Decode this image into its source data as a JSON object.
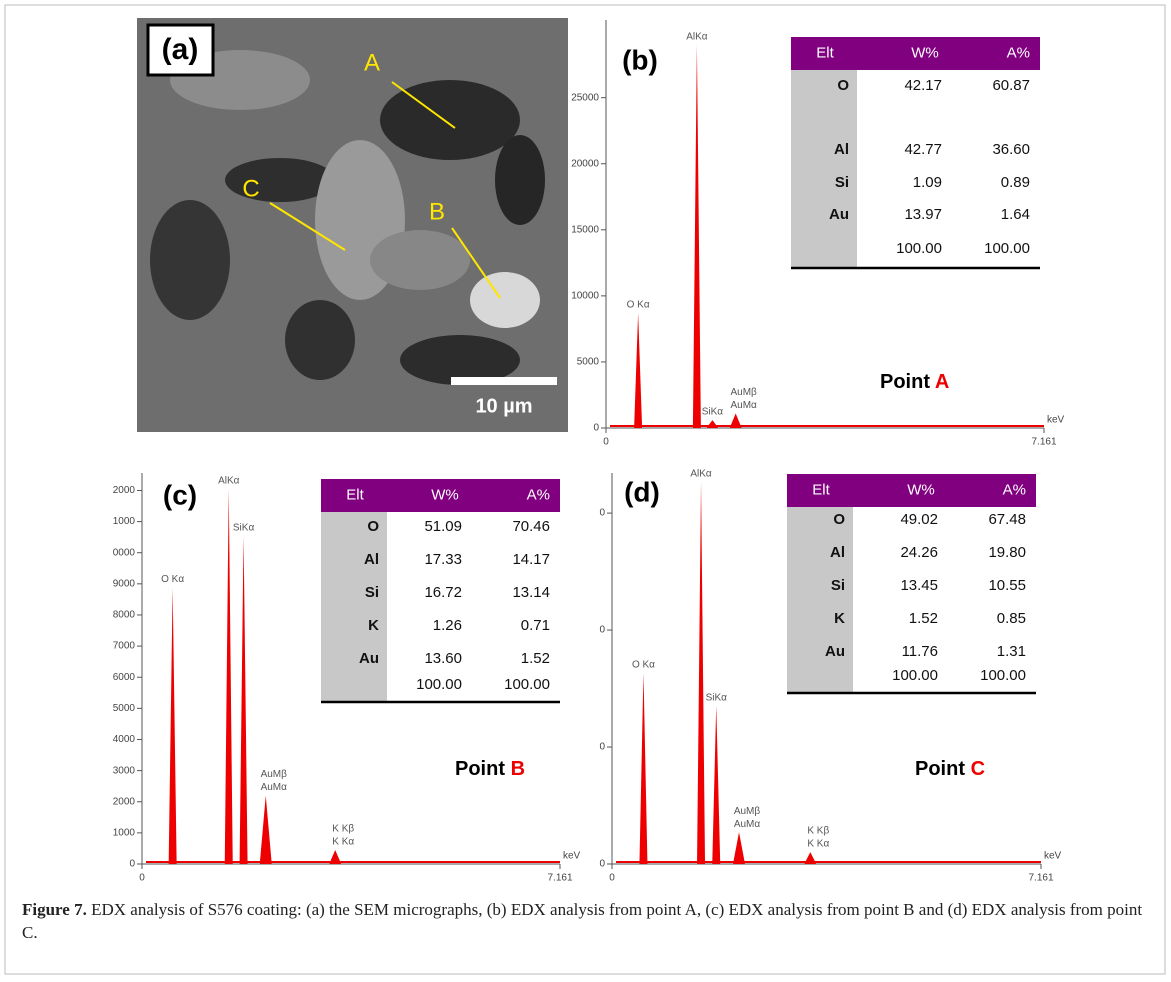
{
  "sem": {
    "label": "(a)",
    "points": [
      "A",
      "B",
      "C"
    ],
    "scale_bar": "10 µm"
  },
  "spectra": [
    {
      "label": "(b)",
      "point": {
        "label": "Point",
        "letter": "A"
      },
      "xlim": [
        0,
        7.161
      ],
      "xticks": [
        0,
        7.161
      ],
      "x_unit": "keV",
      "ylim": [
        0,
        30500
      ],
      "yticks": [
        0,
        5000,
        10000,
        15000,
        20000,
        25000
      ],
      "peaks": [
        {
          "label": [
            "O Kα"
          ],
          "x": 0.525,
          "value": 8700
        },
        {
          "label": [
            "AlKα"
          ],
          "x": 1.486,
          "value": 29000
        },
        {
          "label": [
            "SiKα"
          ],
          "x": 1.74,
          "value": 600
        },
        {
          "label": [
            "AuMβ",
            "AuMα"
          ],
          "x": 2.12,
          "value": 1100
        }
      ],
      "table": {
        "header": [
          "Elt",
          "W%",
          "A%"
        ],
        "rows": [
          [
            "O",
            "42.17",
            "60.87"
          ],
          [
            "Al",
            "42.77",
            "36.60"
          ],
          [
            "Si",
            "1.09",
            "0.89"
          ],
          [
            "Au",
            "13.97",
            "1.64"
          ]
        ],
        "total": [
          "100.00",
          "100.00"
        ]
      }
    },
    {
      "label": "(c)",
      "point": {
        "label": "Point",
        "letter": "B"
      },
      "xlim": [
        0,
        7.161
      ],
      "xticks": [
        0,
        7.161
      ],
      "x_unit": "keV",
      "ylim": [
        0,
        12400
      ],
      "yticks": [
        0,
        1000,
        2000,
        3000,
        4000,
        5000,
        6000,
        7000,
        8000,
        9000,
        {
          "value": 10000,
          "label": "0000"
        },
        {
          "value": 11000,
          "label": "1000"
        },
        {
          "value": 12000,
          "label": "2000"
        }
      ],
      "peaks": [
        {
          "label": [
            "O Kα"
          ],
          "x": 0.525,
          "value": 8880
        },
        {
          "label": [
            "AlKα"
          ],
          "x": 1.486,
          "value": 12050
        },
        {
          "label": [
            "SiKα"
          ],
          "x": 1.74,
          "value": 10540
        },
        {
          "label": [
            "AuMβ",
            "AuMα"
          ],
          "x": 2.12,
          "value": 2200
        },
        {
          "label": [
            "K Kβ",
            "K Kα"
          ],
          "x": 3.31,
          "value": 450
        }
      ],
      "table": {
        "header": [
          "Elt",
          "W%",
          "A%"
        ],
        "rows": [
          [
            "O",
            "51.09",
            "70.46"
          ],
          [
            "Al",
            "17.33",
            "14.17"
          ],
          [
            "Si",
            "16.72",
            "13.14"
          ],
          [
            "K",
            "1.26",
            "0.71"
          ],
          [
            "Au",
            "13.60",
            "1.52"
          ]
        ],
        "total": [
          "100.00",
          "100.00"
        ]
      }
    },
    {
      "label": "(d)",
      "point": {
        "label": "Point",
        "letter": "C"
      },
      "xlim": [
        0,
        7.161
      ],
      "xticks": [
        0,
        7.161
      ],
      "x_unit": "keV",
      "ylim": [
        0,
        16500
      ],
      "yticks": [
        {
          "value": 0,
          "label": "0"
        },
        {
          "value": 5000,
          "label": "0"
        },
        {
          "value": 10000,
          "label": "0"
        },
        {
          "value": 15000,
          "label": "0"
        }
      ],
      "peaks": [
        {
          "label": [
            "O Kα"
          ],
          "x": 0.525,
          "value": 8170
        },
        {
          "label": [
            "AlKα"
          ],
          "x": 1.486,
          "value": 16340
        },
        {
          "label": [
            "SiKα"
          ],
          "x": 1.74,
          "value": 6770
        },
        {
          "label": [
            "AuMβ",
            "AuMα"
          ],
          "x": 2.12,
          "value": 1360
        },
        {
          "label": [
            "K Kβ",
            "K Kα"
          ],
          "x": 3.31,
          "value": 510
        }
      ],
      "table": {
        "header": [
          "Elt",
          "W%",
          "A%"
        ],
        "rows": [
          [
            "O",
            "49.02",
            "67.48"
          ],
          [
            "Al",
            "24.26",
            "19.80"
          ],
          [
            "Si",
            "13.45",
            "10.55"
          ],
          [
            "K",
            "1.52",
            "0.85"
          ],
          [
            "Au",
            "11.76",
            "1.31"
          ]
        ],
        "total": [
          "100.00",
          "100.00"
        ]
      }
    }
  ],
  "caption": {
    "label": "Figure 7.",
    "text": "EDX analysis of S576 coating: (a) the SEM micrographs, (b) EDX analysis from point A, (c) EDX analysis from point B and (d) EDX analysis from point C."
  }
}
